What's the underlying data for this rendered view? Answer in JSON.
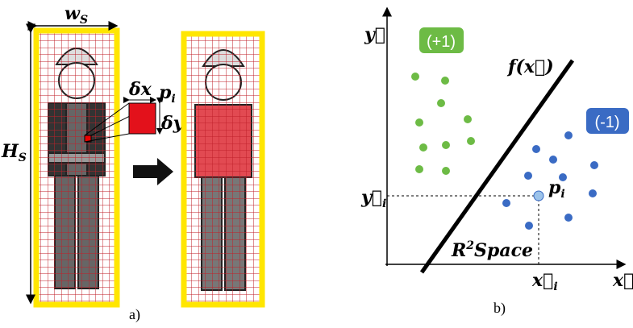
{
  "panel_a": {
    "caption": "a)",
    "width_label": {
      "base": "w",
      "sub": "S"
    },
    "height_label": {
      "base": "H",
      "sub": "S"
    },
    "dx_label": "δx",
    "dy_label": "δy",
    "pixel_label": {
      "base": "p",
      "sub": "i"
    }
  },
  "panel_b": {
    "caption": "b)",
    "class_pos": "(+1)",
    "class_neg": "(-1)",
    "function_label": "f(x⃗)",
    "y_axis_label": "y⃗",
    "x_axis_label": "x⃗",
    "y_i_label": {
      "base": "y⃗",
      "sub": "i"
    },
    "x_i_label": {
      "base": "x⃗",
      "sub": "i"
    },
    "point_label": {
      "base": "p",
      "sub": "i"
    },
    "space_label": {
      "base": "R",
      "sup": "2",
      "rest": "Space"
    }
  }
}
